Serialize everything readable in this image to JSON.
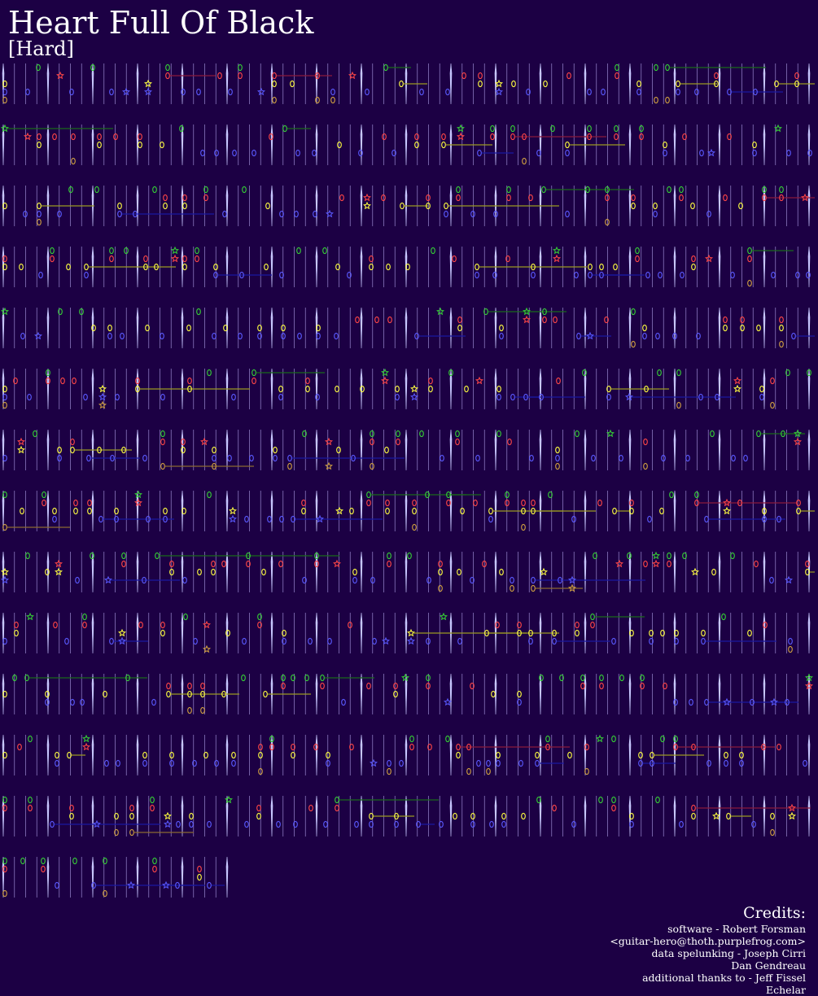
{
  "song": {
    "title": "Heart Full Of Black",
    "difficulty": "[Hard]"
  },
  "colors": {
    "background": "#1c0044",
    "green": "#35d035",
    "red": "#ff4646",
    "yellow": "#ffff40",
    "blue": "#5a5aff",
    "orange": "#d0a040",
    "bar_line": "#c8c8ff",
    "beat_line": "#8c78c0"
  },
  "chart": {
    "lanes": [
      "green",
      "red",
      "yellow",
      "blue",
      "orange"
    ],
    "row_count": 14,
    "sustain_colors": {
      "green": "#1a6a1a",
      "red": "#8a1a3a",
      "yellow": "#9a9a20",
      "blue": "#1818a0",
      "orange": "#8a6a30"
    }
  },
  "credits": {
    "heading": "Credits:",
    "lines": [
      "software - Robert Forsman",
      "<guitar-hero@thoth.purplefrog.com>",
      "data spelunking - Joseph Cirri",
      "Dan Gendreau",
      "additional thanks to - Jeff Fissel",
      "Echelar"
    ]
  }
}
